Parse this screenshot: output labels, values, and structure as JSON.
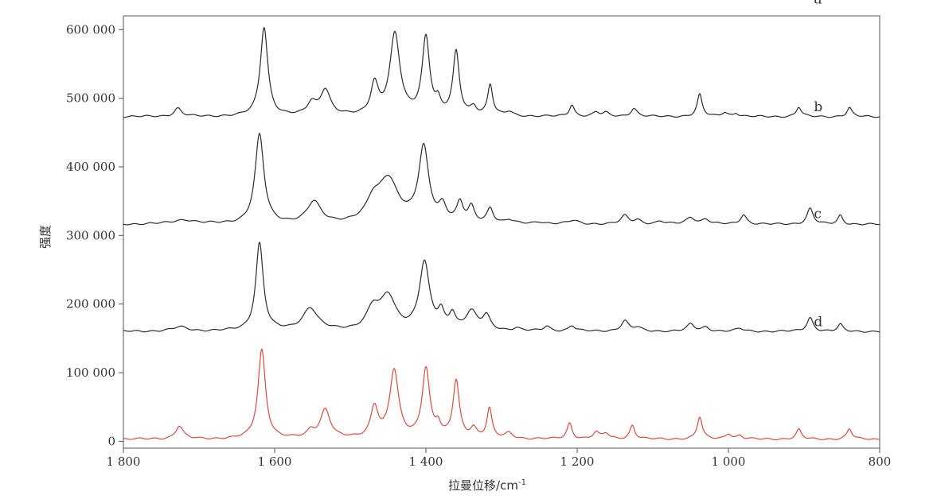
{
  "chart_data": {
    "type": "line",
    "title": "",
    "xlabel": "拉曼位移/cm",
    "xlabel_superscript": "-1",
    "ylabel": "强度",
    "xlim": [
      1800,
      800
    ],
    "ylim": [
      -10000,
      620000
    ],
    "x_ticks": [
      1800,
      1600,
      1400,
      1200,
      1000,
      800
    ],
    "x_tick_labels": [
      "1 800",
      "1 600",
      "1 400",
      "1 200",
      "1 000",
      "800"
    ],
    "y_ticks": [
      0,
      100000,
      200000,
      300000,
      400000,
      500000,
      600000
    ],
    "y_tick_labels": [
      "0",
      "100 000",
      "200 000",
      "300 000",
      "400 000",
      "500 000",
      "600 000"
    ],
    "grid": false,
    "legend": "none",
    "series": [
      {
        "name": "a",
        "color": "#2b2b2b",
        "baseline": 473000,
        "peaks": [
          [
            1728,
            12000,
            6
          ],
          [
            1614,
            130000,
            6
          ],
          [
            1551,
            18000,
            7
          ],
          [
            1533,
            38000,
            8
          ],
          [
            1468,
            45000,
            6
          ],
          [
            1441,
            118000,
            8
          ],
          [
            1400,
            113000,
            6
          ],
          [
            1384,
            16000,
            4
          ],
          [
            1360,
            92000,
            5
          ],
          [
            1337,
            12000,
            5
          ],
          [
            1315,
            45000,
            4
          ],
          [
            1290,
            6000,
            6
          ],
          [
            1207,
            17000,
            4
          ],
          [
            1175,
            6000,
            5
          ],
          [
            1162,
            5000,
            5
          ],
          [
            1125,
            12000,
            5
          ],
          [
            1038,
            32000,
            4
          ],
          [
            1005,
            6000,
            5
          ],
          [
            990,
            5000,
            4
          ],
          [
            907,
            14000,
            4
          ],
          [
            840,
            13000,
            4
          ]
        ]
      },
      {
        "name": "b",
        "color": "#2b2b2b",
        "baseline": 316000,
        "peaks": [
          [
            1720,
            6000,
            18
          ],
          [
            1620,
            130000,
            7
          ],
          [
            1548,
            31000,
            11
          ],
          [
            1470,
            25000,
            10
          ],
          [
            1450,
            64000,
            16
          ],
          [
            1403,
            108000,
            8
          ],
          [
            1378,
            22000,
            6
          ],
          [
            1355,
            28000,
            5
          ],
          [
            1340,
            22000,
            5
          ],
          [
            1315,
            22000,
            5
          ],
          [
            1290,
            5000,
            6
          ],
          [
            1250,
            3000,
            8
          ],
          [
            1205,
            5000,
            8
          ],
          [
            1137,
            12000,
            6
          ],
          [
            1120,
            6000,
            6
          ],
          [
            1090,
            4000,
            6
          ],
          [
            1050,
            10000,
            7
          ],
          [
            1030,
            7000,
            6
          ],
          [
            980,
            14000,
            5
          ],
          [
            892,
            23000,
            5
          ],
          [
            852,
            13000,
            4
          ]
        ]
      },
      {
        "name": "c",
        "color": "#2b2b2b",
        "baseline": 160000,
        "peaks": [
          [
            1725,
            6000,
            12
          ],
          [
            1620,
            128000,
            6
          ],
          [
            1553,
            33000,
            12
          ],
          [
            1470,
            30000,
            10
          ],
          [
            1450,
            48000,
            12
          ],
          [
            1402,
            98000,
            8
          ],
          [
            1380,
            22000,
            5
          ],
          [
            1365,
            22000,
            5
          ],
          [
            1340,
            27000,
            9
          ],
          [
            1320,
            20000,
            6
          ],
          [
            1280,
            4000,
            6
          ],
          [
            1240,
            7000,
            5
          ],
          [
            1207,
            8000,
            5
          ],
          [
            1137,
            15000,
            6
          ],
          [
            1120,
            5000,
            6
          ],
          [
            1050,
            10000,
            6
          ],
          [
            1030,
            6000,
            6
          ],
          [
            985,
            4000,
            6
          ],
          [
            892,
            20000,
            5
          ],
          [
            852,
            10000,
            4
          ]
        ]
      },
      {
        "name": "d",
        "color": "#e2473c",
        "baseline": 3000,
        "peaks": [
          [
            1726,
            19000,
            6
          ],
          [
            1617,
            130000,
            6
          ],
          [
            1552,
            10000,
            6
          ],
          [
            1533,
            42000,
            8
          ],
          [
            1468,
            45000,
            6
          ],
          [
            1442,
            98000,
            7
          ],
          [
            1400,
            101000,
            6
          ],
          [
            1384,
            16000,
            4
          ],
          [
            1360,
            83000,
            5
          ],
          [
            1337,
            14000,
            5
          ],
          [
            1316,
            43000,
            4
          ],
          [
            1290,
            8000,
            6
          ],
          [
            1210,
            23000,
            4
          ],
          [
            1175,
            9000,
            5
          ],
          [
            1162,
            8000,
            5
          ],
          [
            1127,
            20000,
            4
          ],
          [
            1038,
            32000,
            4
          ],
          [
            1000,
            8000,
            5
          ],
          [
            985,
            5000,
            4
          ],
          [
            907,
            14000,
            4
          ],
          [
            840,
            15000,
            4
          ]
        ]
      }
    ]
  }
}
